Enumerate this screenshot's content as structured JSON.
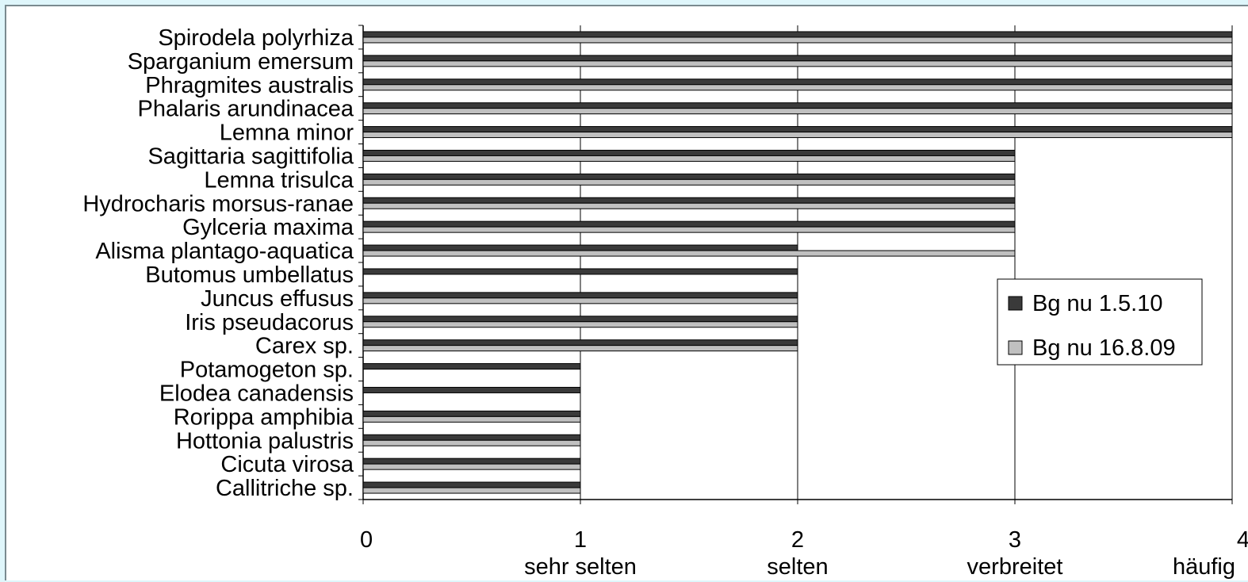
{
  "chart_data": {
    "type": "bar",
    "orientation": "horizontal",
    "categories": [
      "Spirodela polyrhiza",
      "Sparganium emersum",
      "Phragmites australis",
      "Phalaris arundinacea",
      "Lemna minor",
      "Sagittaria sagittifolia",
      "Lemna trisulca",
      "Hydrocharis morsus-ranae",
      "Gylceria maxima",
      "Alisma plantago-aquatica",
      "Butomus umbellatus",
      "Juncus effusus",
      "Iris pseudacorus",
      "Carex sp.",
      "Potamogeton sp.",
      "Elodea canadensis",
      "Rorippa amphibia",
      "Hottonia palustris",
      "Cicuta virosa",
      "Callitriche sp."
    ],
    "series": [
      {
        "name": "Bg nu 1.5.10",
        "color": "#3a3a3a",
        "values": [
          4,
          4,
          4,
          4,
          4,
          3,
          3,
          3,
          3,
          2,
          2,
          2,
          2,
          2,
          1,
          1,
          1,
          1,
          1,
          1
        ]
      },
      {
        "name": "Bg nu 16.8.09",
        "color": "#c0c0c0",
        "values": [
          4,
          4,
          4,
          4,
          4,
          3,
          3,
          3,
          3,
          3,
          0,
          2,
          2,
          2,
          0,
          0,
          1,
          1,
          1,
          1
        ]
      }
    ],
    "x_ticks": [
      {
        "value": 0,
        "label": "0",
        "sublabel": ""
      },
      {
        "value": 1,
        "label": "1",
        "sublabel": "sehr selten"
      },
      {
        "value": 2,
        "label": "2",
        "sublabel": "selten"
      },
      {
        "value": 3,
        "label": "3",
        "sublabel": "verbreitet"
      },
      {
        "value": 4,
        "label": "4",
        "sublabel": "häufig"
      }
    ],
    "xlim": [
      0,
      4
    ],
    "grid": "vertical",
    "legend_position": "right"
  }
}
